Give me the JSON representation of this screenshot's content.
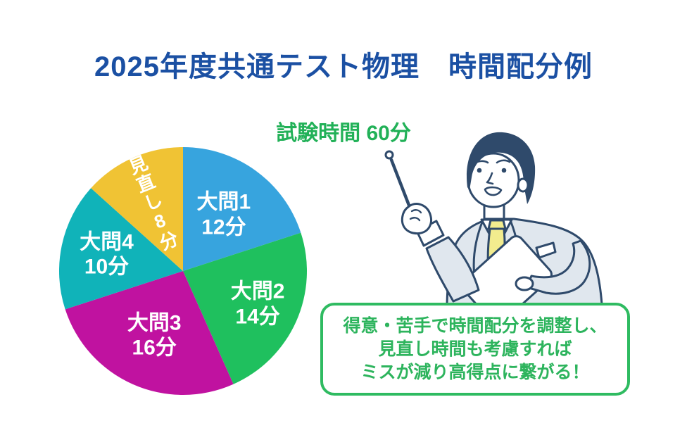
{
  "title": "2025年度共通テスト物理　時間配分例",
  "subtitle": "試験時間 60分",
  "colors": {
    "title_blue": "#1B50A3",
    "subtitle_green": "#22B158",
    "callout_green": "#2DB45D",
    "callout_border_green": "#2FBB61",
    "slice_label_white": "#FFFFFF"
  },
  "chart_data": {
    "type": "pie",
    "title": "試験時間 60分",
    "unit": "分",
    "total_minutes": 60,
    "start_angle_deg": 0,
    "direction": "clockwise",
    "legend_position": "none",
    "slices": [
      {
        "label": "大問1",
        "minutes": 12,
        "color": "#37A4DE",
        "label_lines": [
          "大問1",
          "12分"
        ],
        "label_r": 0.56
      },
      {
        "label": "大問2",
        "minutes": 14,
        "color": "#1FC05E",
        "label_lines": [
          "大問2",
          "14分"
        ],
        "label_r": 0.66
      },
      {
        "label": "大問3",
        "minutes": 16,
        "color": "#C012A0",
        "label_lines": [
          "大問3",
          "16分"
        ],
        "label_r": 0.57
      },
      {
        "label": "大問4",
        "minutes": 10,
        "color": "#10B3B9",
        "label_lines": [
          "大問4",
          "10分"
        ],
        "label_r": 0.63
      },
      {
        "label": "見直し",
        "minutes": 8,
        "color": "#F0C334",
        "label_text": "見直し8分",
        "label_vertical": true,
        "label_rotation_deg": -22,
        "label_r": 0.6
      }
    ]
  },
  "callout": {
    "lines": [
      "得意・苦手で時間配分を調整し、",
      "見直し時間も考慮すれば",
      "ミスが減り高得点に繋がる！"
    ]
  },
  "illustration": {
    "name": "teacher-with-pointer-and-clipboard"
  }
}
